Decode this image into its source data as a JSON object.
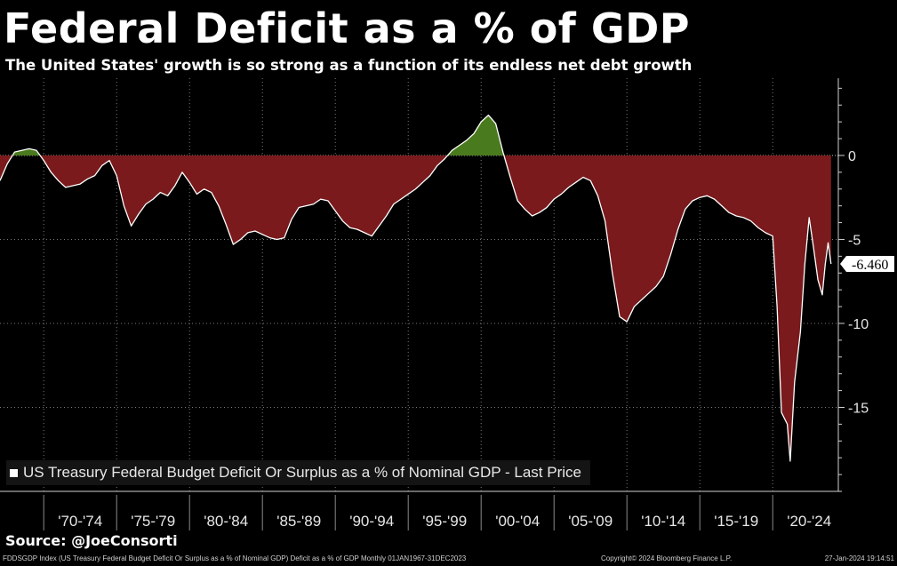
{
  "title": "Federal Deficit as a % of GDP",
  "subtitle": "The United States' growth is so strong as a function of its endless net debt growth",
  "legend_label": "US Treasury Federal Budget Deficit Or Surplus as a % of Nominal GDP - Last Price",
  "source": "Source: @JoeConsorti",
  "footer": {
    "left": "FDDSGDP Index (US Treasury Federal Budget Deficit Or Surplus as a % of Nominal GDP) Deficit as a % of GDP  Monthly 01JAN1967-31DEC2023",
    "middle": "Copyright© 2024 Bloomberg Finance L.P.",
    "right": "27-Jan-2024 19:14:51"
  },
  "colors": {
    "background": "#000000",
    "deficit_fill": "#7a1a1c",
    "surplus_fill": "#4a7a1e",
    "line": "#ffffff",
    "grid": "#7a7a7a"
  },
  "chart_data": {
    "type": "area",
    "title": "Federal Deficit as a % of GDP",
    "series_name": "US Treasury Federal Budget Deficit Or Surplus as a % of Nominal GDP - Last Price",
    "xlim": [
      1967,
      2024.5
    ],
    "ylim": [
      -20,
      4.6
    ],
    "y_ticks": [
      0,
      -5,
      -10,
      -15
    ],
    "y_tick_labels": [
      "0",
      "-5",
      "-10",
      "-15"
    ],
    "x_tick_labels": [
      "'70-'74",
      "'75-'79",
      "'80-'84",
      "'85-'89",
      "'90-'94",
      "'95-'99",
      "'00-'04",
      "'05-'09",
      "'10-'14",
      "'15-'19",
      "'20-'24"
    ],
    "x_tick_centers": [
      1972.5,
      1977.5,
      1982.5,
      1987.5,
      1992.5,
      1997.5,
      2002.5,
      2007.5,
      2012.5,
      2017.5,
      2022.5
    ],
    "grid": true,
    "last_value_label": "-6.460",
    "points": [
      [
        1967.0,
        -1.5
      ],
      [
        1967.5,
        -0.5
      ],
      [
        1968.0,
        0.2
      ],
      [
        1968.5,
        0.3
      ],
      [
        1969.0,
        0.4
      ],
      [
        1969.5,
        0.3
      ],
      [
        1970.0,
        -0.3
      ],
      [
        1970.5,
        -1.0
      ],
      [
        1971.0,
        -1.5
      ],
      [
        1971.5,
        -1.9
      ],
      [
        1972.0,
        -1.8
      ],
      [
        1972.5,
        -1.7
      ],
      [
        1973.0,
        -1.4
      ],
      [
        1973.5,
        -1.2
      ],
      [
        1974.0,
        -0.6
      ],
      [
        1974.5,
        -0.3
      ],
      [
        1975.0,
        -1.2
      ],
      [
        1975.5,
        -3.0
      ],
      [
        1976.0,
        -4.2
      ],
      [
        1976.5,
        -3.5
      ],
      [
        1977.0,
        -2.9
      ],
      [
        1977.5,
        -2.6
      ],
      [
        1978.0,
        -2.2
      ],
      [
        1978.5,
        -2.4
      ],
      [
        1979.0,
        -1.8
      ],
      [
        1979.5,
        -1.0
      ],
      [
        1980.0,
        -1.6
      ],
      [
        1980.5,
        -2.3
      ],
      [
        1981.0,
        -2.0
      ],
      [
        1981.5,
        -2.2
      ],
      [
        1982.0,
        -3.0
      ],
      [
        1982.5,
        -4.1
      ],
      [
        1983.0,
        -5.3
      ],
      [
        1983.5,
        -5.0
      ],
      [
        1984.0,
        -4.6
      ],
      [
        1984.5,
        -4.5
      ],
      [
        1985.0,
        -4.7
      ],
      [
        1985.5,
        -4.9
      ],
      [
        1986.0,
        -5.0
      ],
      [
        1986.5,
        -4.9
      ],
      [
        1987.0,
        -3.8
      ],
      [
        1987.5,
        -3.1
      ],
      [
        1988.0,
        -3.0
      ],
      [
        1988.5,
        -2.9
      ],
      [
        1989.0,
        -2.6
      ],
      [
        1989.5,
        -2.7
      ],
      [
        1990.0,
        -3.3
      ],
      [
        1990.5,
        -3.9
      ],
      [
        1991.0,
        -4.3
      ],
      [
        1991.5,
        -4.4
      ],
      [
        1992.0,
        -4.6
      ],
      [
        1992.5,
        -4.8
      ],
      [
        1993.0,
        -4.2
      ],
      [
        1993.5,
        -3.6
      ],
      [
        1994.0,
        -2.9
      ],
      [
        1994.5,
        -2.6
      ],
      [
        1995.0,
        -2.3
      ],
      [
        1995.5,
        -2.0
      ],
      [
        1996.0,
        -1.6
      ],
      [
        1996.5,
        -1.2
      ],
      [
        1997.0,
        -0.6
      ],
      [
        1997.5,
        -0.2
      ],
      [
        1998.0,
        0.3
      ],
      [
        1998.5,
        0.6
      ],
      [
        1999.0,
        0.9
      ],
      [
        1999.5,
        1.3
      ],
      [
        2000.0,
        2.0
      ],
      [
        2000.5,
        2.4
      ],
      [
        2001.0,
        1.9
      ],
      [
        2001.5,
        0.2
      ],
      [
        2002.0,
        -1.3
      ],
      [
        2002.5,
        -2.7
      ],
      [
        2003.0,
        -3.2
      ],
      [
        2003.5,
        -3.6
      ],
      [
        2004.0,
        -3.4
      ],
      [
        2004.5,
        -3.1
      ],
      [
        2005.0,
        -2.6
      ],
      [
        2005.5,
        -2.3
      ],
      [
        2006.0,
        -1.9
      ],
      [
        2006.5,
        -1.6
      ],
      [
        2007.0,
        -1.3
      ],
      [
        2007.5,
        -1.5
      ],
      [
        2008.0,
        -2.4
      ],
      [
        2008.5,
        -3.9
      ],
      [
        2009.0,
        -7.0
      ],
      [
        2009.5,
        -9.6
      ],
      [
        2010.0,
        -9.9
      ],
      [
        2010.5,
        -9.0
      ],
      [
        2011.0,
        -8.6
      ],
      [
        2011.5,
        -8.2
      ],
      [
        2012.0,
        -7.8
      ],
      [
        2012.5,
        -7.2
      ],
      [
        2013.0,
        -5.9
      ],
      [
        2013.5,
        -4.4
      ],
      [
        2014.0,
        -3.2
      ],
      [
        2014.5,
        -2.7
      ],
      [
        2015.0,
        -2.5
      ],
      [
        2015.5,
        -2.4
      ],
      [
        2016.0,
        -2.6
      ],
      [
        2016.5,
        -3.0
      ],
      [
        2017.0,
        -3.4
      ],
      [
        2017.5,
        -3.6
      ],
      [
        2018.0,
        -3.7
      ],
      [
        2018.5,
        -3.9
      ],
      [
        2019.0,
        -4.3
      ],
      [
        2019.5,
        -4.6
      ],
      [
        2020.0,
        -4.8
      ],
      [
        2020.3,
        -9.0
      ],
      [
        2020.6,
        -15.3
      ],
      [
        2021.0,
        -16.0
      ],
      [
        2021.2,
        -18.2
      ],
      [
        2021.5,
        -13.5
      ],
      [
        2021.9,
        -10.5
      ],
      [
        2022.2,
        -6.5
      ],
      [
        2022.5,
        -3.7
      ],
      [
        2022.8,
        -5.5
      ],
      [
        2023.1,
        -7.4
      ],
      [
        2023.4,
        -8.3
      ],
      [
        2023.6,
        -6.5
      ],
      [
        2023.8,
        -5.2
      ],
      [
        2024.0,
        -6.46
      ]
    ]
  }
}
